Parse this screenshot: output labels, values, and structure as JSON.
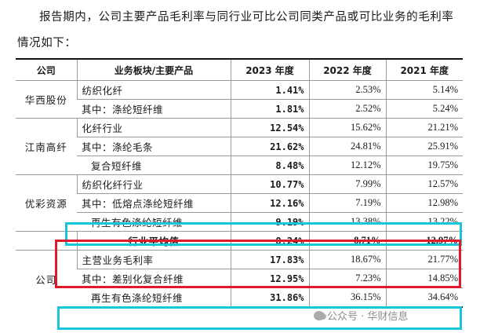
{
  "intro": "报告期内，公司主要产品毛利率与同行业可比公司同类产品或可比业务的毛利率情况如下：",
  "header": {
    "company": "公司",
    "segment": "业务板块/主要产品",
    "y2023": "2023 年度",
    "y2022": "2022 年度",
    "y2021": "2021 年度"
  },
  "groups": {
    "huaxi": "华西股份",
    "jiangnan": "江南高纤",
    "youcai": "优彩资源",
    "self": "公司"
  },
  "rows": [
    {
      "segment": "纺织化纤",
      "y2023": "1.41%",
      "y2022": "2.53%",
      "y2021": "5.14%"
    },
    {
      "segment": "其中：涤纶短纤维",
      "y2023": "1.81%",
      "y2022": "2.52%",
      "y2021": "5.24%"
    },
    {
      "segment": "化纤行业",
      "y2023": "12.54%",
      "y2022": "15.62%",
      "y2021": "21.21%"
    },
    {
      "segment": "其中：涤纶毛条",
      "y2023": "21.62%",
      "y2022": "24.81%",
      "y2021": "25.91%"
    },
    {
      "segment": "复合短纤维",
      "y2023": "8.48%",
      "y2022": "12.12%",
      "y2021": "19.75%"
    },
    {
      "segment": "纺织化纤行业",
      "y2023": "10.77%",
      "y2022": "7.99%",
      "y2021": "12.57%"
    },
    {
      "segment": "其中：低熔点涤纶短纤维",
      "y2023": "12.16%",
      "y2022": "7.19%",
      "y2021": "12.98%"
    },
    {
      "segment": "再生有色涤纶短纤维",
      "y2023": "9.19%",
      "y2022": "13.38%",
      "y2021": "13.22%"
    },
    {
      "segment": "行业平均值",
      "y2023": "8.24%",
      "y2022": "8.71%",
      "y2021": "12.97%"
    },
    {
      "segment": "主营业务毛利率",
      "y2023": "17.83%",
      "y2022": "18.67%",
      "y2021": "21.77%"
    },
    {
      "segment": "其中：差别化复合纤维",
      "y2023": "12.95%",
      "y2022": "7.23%",
      "y2021": "14.85%"
    },
    {
      "segment": "再生有色涤纶短纤维",
      "y2023": "31.86%",
      "y2022": "36.15%",
      "y2021": "34.64%"
    }
  ],
  "watermark": "公众号 · 华财信息",
  "colors": {
    "highlight_cyan": "#18c6dc",
    "highlight_red": "#e0192b"
  }
}
